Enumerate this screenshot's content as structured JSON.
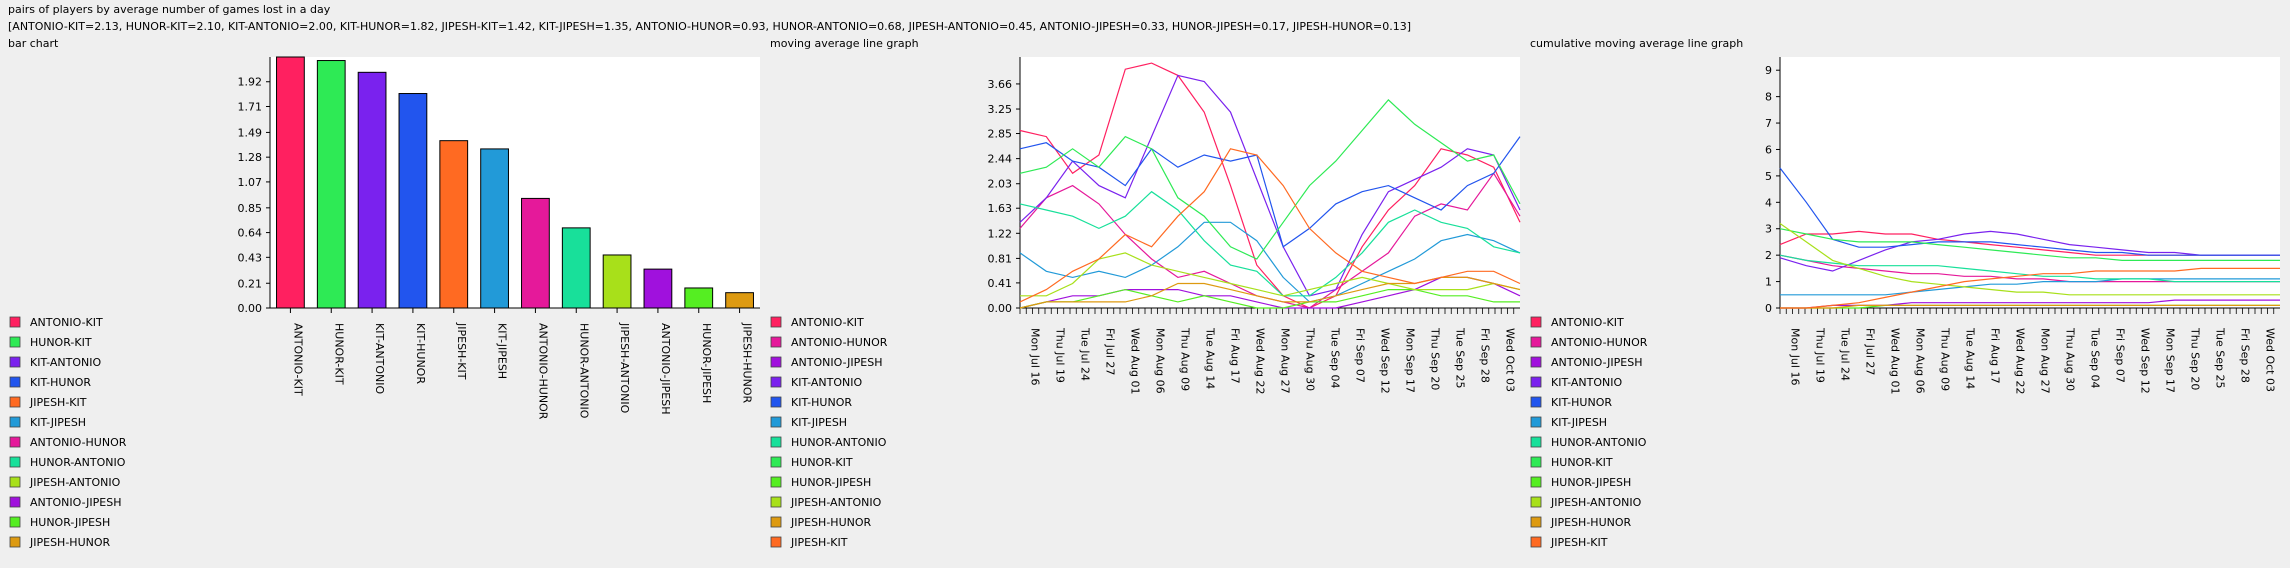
{
  "page": {
    "title": "pairs of players by average number of games lost in a day",
    "summary": "[ANTONIO-KIT=2.13, HUNOR-KIT=2.10, KIT-ANTONIO=2.00, KIT-HUNOR=1.82, JIPESH-KIT=1.42, KIT-JIPESH=1.35, ANTONIO-HUNOR=0.93, HUNOR-ANTONIO=0.68, JIPESH-ANTONIO=0.45, ANTONIO-JIPESH=0.33, HUNOR-JIPESH=0.17, JIPESH-HUNOR=0.13]"
  },
  "colors": {
    "ANTONIO-KIT": "#ff2060",
    "HUNOR-KIT": "#2eea55",
    "KIT-ANTONIO": "#7a22ee",
    "KIT-HUNOR": "#2255ee",
    "JIPESH-KIT": "#ff6a22",
    "KIT-JIPESH": "#229ad8",
    "ANTONIO-HUNOR": "#e5199a",
    "HUNOR-ANTONIO": "#18e09a",
    "JIPESH-ANTONIO": "#a8e01a",
    "ANTONIO-JIPESH": "#a011dd",
    "HUNOR-JIPESH": "#55ee22",
    "JIPESH-HUNOR": "#dd9a11"
  },
  "date_ticks": [
    "Mon Jul 16",
    "Thu Jul 19",
    "Tue Jul 24",
    "Fri Jul 27",
    "Wed Aug 01",
    "Mon Aug 06",
    "Thu Aug 09",
    "Tue Aug 14",
    "Fri Aug 17",
    "Wed Aug 22",
    "Mon Aug 27",
    "Thu Aug 30",
    "Tue Sep 04",
    "Fri Sep 07",
    "Wed Sep 12",
    "Mon Sep 17",
    "Thu Sep 20",
    "Tue Sep 25",
    "Fri Sep 28",
    "Wed Oct 03"
  ],
  "chart_data": [
    {
      "type": "bar",
      "panel_label": "bar chart",
      "categories": [
        "ANTONIO-KIT",
        "HUNOR-KIT",
        "KIT-ANTONIO",
        "KIT-HUNOR",
        "JIPESH-KIT",
        "KIT-JIPESH",
        "ANTONIO-HUNOR",
        "HUNOR-ANTONIO",
        "JIPESH-ANTONIO",
        "ANTONIO-JIPESH",
        "HUNOR-JIPESH",
        "JIPESH-HUNOR"
      ],
      "values": [
        2.13,
        2.1,
        2.0,
        1.82,
        1.42,
        1.35,
        0.93,
        0.68,
        0.45,
        0.33,
        0.17,
        0.13
      ],
      "yticks": [
        "0.00",
        "0.21",
        "0.43",
        "0.64",
        "0.85",
        "1.07",
        "1.28",
        "1.49",
        "1.71",
        "1.92"
      ],
      "ylim": [
        0,
        2.13
      ],
      "legend": [
        "ANTONIO-KIT",
        "HUNOR-KIT",
        "KIT-ANTONIO",
        "KIT-HUNOR",
        "JIPESH-KIT",
        "KIT-JIPESH",
        "ANTONIO-HUNOR",
        "HUNOR-ANTONIO",
        "JIPESH-ANTONIO",
        "ANTONIO-JIPESH",
        "HUNOR-JIPESH",
        "JIPESH-HUNOR"
      ],
      "legend_position": "left"
    },
    {
      "type": "line",
      "panel_label": "moving average line graph",
      "yticks": [
        "0.00",
        "0.41",
        "0.81",
        "1.22",
        "1.63",
        "2.03",
        "2.44",
        "2.85",
        "3.25",
        "3.66"
      ],
      "ylim": [
        0,
        4.1
      ],
      "legend": [
        "ANTONIO-KIT",
        "ANTONIO-HUNOR",
        "ANTONIO-JIPESH",
        "KIT-ANTONIO",
        "KIT-HUNOR",
        "KIT-JIPESH",
        "HUNOR-ANTONIO",
        "HUNOR-KIT",
        "HUNOR-JIPESH",
        "JIPESH-ANTONIO",
        "JIPESH-HUNOR",
        "JIPESH-KIT"
      ],
      "legend_position": "left",
      "x_count": 20,
      "series": [
        {
          "name": "ANTONIO-KIT",
          "values": [
            2.9,
            2.8,
            2.2,
            2.5,
            3.9,
            4.0,
            3.8,
            3.2,
            2.0,
            0.7,
            0.2,
            0.0,
            0.2,
            1.0,
            1.6,
            2.0,
            2.6,
            2.5,
            2.3,
            1.4
          ]
        },
        {
          "name": "ANTONIO-HUNOR",
          "values": [
            1.3,
            1.8,
            2.0,
            1.7,
            1.2,
            0.8,
            0.5,
            0.6,
            0.4,
            0.2,
            0.1,
            0.0,
            0.3,
            0.6,
            0.9,
            1.5,
            1.7,
            1.6,
            2.2,
            1.5
          ]
        },
        {
          "name": "ANTONIO-JIPESH",
          "values": [
            0.0,
            0.1,
            0.2,
            0.2,
            0.3,
            0.3,
            0.3,
            0.2,
            0.2,
            0.1,
            0.0,
            0.0,
            0.0,
            0.1,
            0.2,
            0.3,
            0.5,
            0.5,
            0.4,
            0.2
          ]
        },
        {
          "name": "KIT-ANTONIO",
          "values": [
            1.4,
            1.8,
            2.4,
            2.0,
            1.8,
            2.8,
            3.8,
            3.7,
            3.2,
            2.1,
            1.0,
            0.2,
            0.3,
            1.2,
            1.9,
            2.1,
            2.3,
            2.6,
            2.5,
            1.6
          ]
        },
        {
          "name": "KIT-HUNOR",
          "values": [
            2.6,
            2.7,
            2.4,
            2.3,
            2.0,
            2.6,
            2.3,
            2.5,
            2.4,
            2.5,
            1.0,
            1.3,
            1.7,
            1.9,
            2.0,
            1.8,
            1.6,
            2.0,
            2.2,
            2.8
          ]
        },
        {
          "name": "KIT-JIPESH",
          "values": [
            0.9,
            0.6,
            0.5,
            0.6,
            0.5,
            0.7,
            1.0,
            1.4,
            1.4,
            1.1,
            0.5,
            0.1,
            0.2,
            0.4,
            0.6,
            0.8,
            1.1,
            1.2,
            1.1,
            0.9
          ]
        },
        {
          "name": "HUNOR-ANTONIO",
          "values": [
            1.7,
            1.6,
            1.5,
            1.3,
            1.5,
            1.9,
            1.6,
            1.1,
            0.7,
            0.6,
            0.2,
            0.2,
            0.5,
            0.9,
            1.4,
            1.6,
            1.4,
            1.3,
            1.0,
            0.9
          ]
        },
        {
          "name": "HUNOR-KIT",
          "values": [
            2.2,
            2.3,
            2.6,
            2.3,
            2.8,
            2.6,
            1.8,
            1.5,
            1.0,
            0.8,
            1.4,
            2.0,
            2.4,
            2.9,
            3.4,
            3.0,
            2.7,
            2.4,
            2.5,
            1.7
          ]
        },
        {
          "name": "HUNOR-JIPESH",
          "values": [
            0.0,
            0.1,
            0.1,
            0.2,
            0.3,
            0.2,
            0.1,
            0.2,
            0.1,
            0.0,
            0.0,
            0.1,
            0.1,
            0.2,
            0.3,
            0.3,
            0.2,
            0.2,
            0.1,
            0.1
          ]
        },
        {
          "name": "JIPESH-ANTONIO",
          "values": [
            0.2,
            0.2,
            0.4,
            0.8,
            0.9,
            0.7,
            0.6,
            0.5,
            0.4,
            0.3,
            0.2,
            0.3,
            0.4,
            0.5,
            0.4,
            0.3,
            0.3,
            0.3,
            0.4,
            0.3
          ]
        },
        {
          "name": "JIPESH-HUNOR",
          "values": [
            0.0,
            0.1,
            0.1,
            0.1,
            0.1,
            0.2,
            0.4,
            0.4,
            0.3,
            0.2,
            0.1,
            0.1,
            0.2,
            0.3,
            0.4,
            0.4,
            0.5,
            0.5,
            0.4,
            0.3
          ]
        },
        {
          "name": "JIPESH-KIT",
          "values": [
            0.1,
            0.3,
            0.6,
            0.8,
            1.2,
            1.0,
            1.5,
            1.9,
            2.6,
            2.5,
            2.0,
            1.3,
            0.9,
            0.6,
            0.5,
            0.4,
            0.5,
            0.6,
            0.6,
            0.4
          ]
        }
      ]
    },
    {
      "type": "line",
      "panel_label": "cumulative moving average line graph",
      "yticks": [
        "0",
        "1",
        "2",
        "3",
        "4",
        "5",
        "6",
        "7",
        "8",
        "9"
      ],
      "ylim": [
        0,
        9.5
      ],
      "legend": [
        "ANTONIO-KIT",
        "ANTONIO-HUNOR",
        "ANTONIO-JIPESH",
        "KIT-ANTONIO",
        "KIT-HUNOR",
        "KIT-JIPESH",
        "HUNOR-ANTONIO",
        "HUNOR-KIT",
        "HUNOR-JIPESH",
        "JIPESH-ANTONIO",
        "JIPESH-HUNOR",
        "JIPESH-KIT"
      ],
      "legend_position": "left",
      "x_count": 20,
      "series": [
        {
          "name": "ANTONIO-KIT",
          "values": [
            2.4,
            2.8,
            2.8,
            2.9,
            2.8,
            2.8,
            2.6,
            2.5,
            2.4,
            2.3,
            2.2,
            2.1,
            2.0,
            2.0,
            2.0,
            2.0,
            2.0,
            2.0,
            2.0,
            2.0
          ]
        },
        {
          "name": "ANTONIO-HUNOR",
          "values": [
            2.0,
            1.8,
            1.6,
            1.5,
            1.4,
            1.3,
            1.3,
            1.2,
            1.2,
            1.1,
            1.1,
            1.0,
            1.0,
            1.0,
            1.0,
            1.0,
            1.0,
            1.0,
            1.0,
            1.0
          ]
        },
        {
          "name": "ANTONIO-JIPESH",
          "values": [
            0.0,
            0.0,
            0.1,
            0.1,
            0.1,
            0.2,
            0.2,
            0.2,
            0.2,
            0.2,
            0.2,
            0.2,
            0.2,
            0.2,
            0.2,
            0.3,
            0.3,
            0.3,
            0.3,
            0.3
          ]
        },
        {
          "name": "KIT-ANTONIO",
          "values": [
            1.9,
            1.6,
            1.4,
            1.8,
            2.2,
            2.5,
            2.6,
            2.8,
            2.9,
            2.8,
            2.6,
            2.4,
            2.3,
            2.2,
            2.1,
            2.1,
            2.0,
            2.0,
            2.0,
            2.0
          ]
        },
        {
          "name": "KIT-HUNOR",
          "values": [
            5.3,
            4.0,
            2.6,
            2.3,
            2.3,
            2.4,
            2.5,
            2.5,
            2.5,
            2.4,
            2.3,
            2.2,
            2.1,
            2.1,
            2.0,
            2.0,
            2.0,
            2.0,
            2.0,
            2.0
          ]
        },
        {
          "name": "KIT-JIPESH",
          "values": [
            0.5,
            0.5,
            0.5,
            0.5,
            0.5,
            0.6,
            0.7,
            0.8,
            0.9,
            0.9,
            1.0,
            1.0,
            1.0,
            1.1,
            1.1,
            1.1,
            1.1,
            1.1,
            1.1,
            1.1
          ]
        },
        {
          "name": "HUNOR-ANTONIO",
          "values": [
            2.0,
            1.8,
            1.7,
            1.6,
            1.6,
            1.6,
            1.6,
            1.5,
            1.4,
            1.3,
            1.2,
            1.2,
            1.1,
            1.1,
            1.1,
            1.0,
            1.0,
            1.0,
            1.0,
            1.0
          ]
        },
        {
          "name": "HUNOR-KIT",
          "values": [
            3.0,
            2.8,
            2.6,
            2.5,
            2.5,
            2.5,
            2.4,
            2.3,
            2.2,
            2.1,
            2.0,
            1.9,
            1.9,
            1.8,
            1.8,
            1.8,
            1.8,
            1.8,
            1.8,
            1.8
          ]
        },
        {
          "name": "HUNOR-JIPESH",
          "values": [
            0.0,
            0.0,
            0.0,
            0.0,
            0.1,
            0.1,
            0.1,
            0.1,
            0.1,
            0.1,
            0.1,
            0.1,
            0.1,
            0.1,
            0.1,
            0.1,
            0.1,
            0.1,
            0.1,
            0.1
          ]
        },
        {
          "name": "JIPESH-ANTONIO",
          "values": [
            3.2,
            2.5,
            1.8,
            1.5,
            1.2,
            1.0,
            0.9,
            0.8,
            0.7,
            0.6,
            0.6,
            0.5,
            0.5,
            0.5,
            0.5,
            0.5,
            0.5,
            0.5,
            0.5,
            0.5
          ]
        },
        {
          "name": "JIPESH-HUNOR",
          "values": [
            0.0,
            0.0,
            0.0,
            0.1,
            0.1,
            0.1,
            0.1,
            0.1,
            0.1,
            0.1,
            0.1,
            0.1,
            0.1,
            0.1,
            0.1,
            0.1,
            0.1,
            0.1,
            0.1,
            0.1
          ]
        },
        {
          "name": "JIPESH-KIT",
          "values": [
            0.0,
            0.0,
            0.1,
            0.2,
            0.4,
            0.6,
            0.8,
            1.0,
            1.1,
            1.2,
            1.3,
            1.3,
            1.4,
            1.4,
            1.4,
            1.4,
            1.5,
            1.5,
            1.5,
            1.5
          ]
        }
      ]
    }
  ]
}
